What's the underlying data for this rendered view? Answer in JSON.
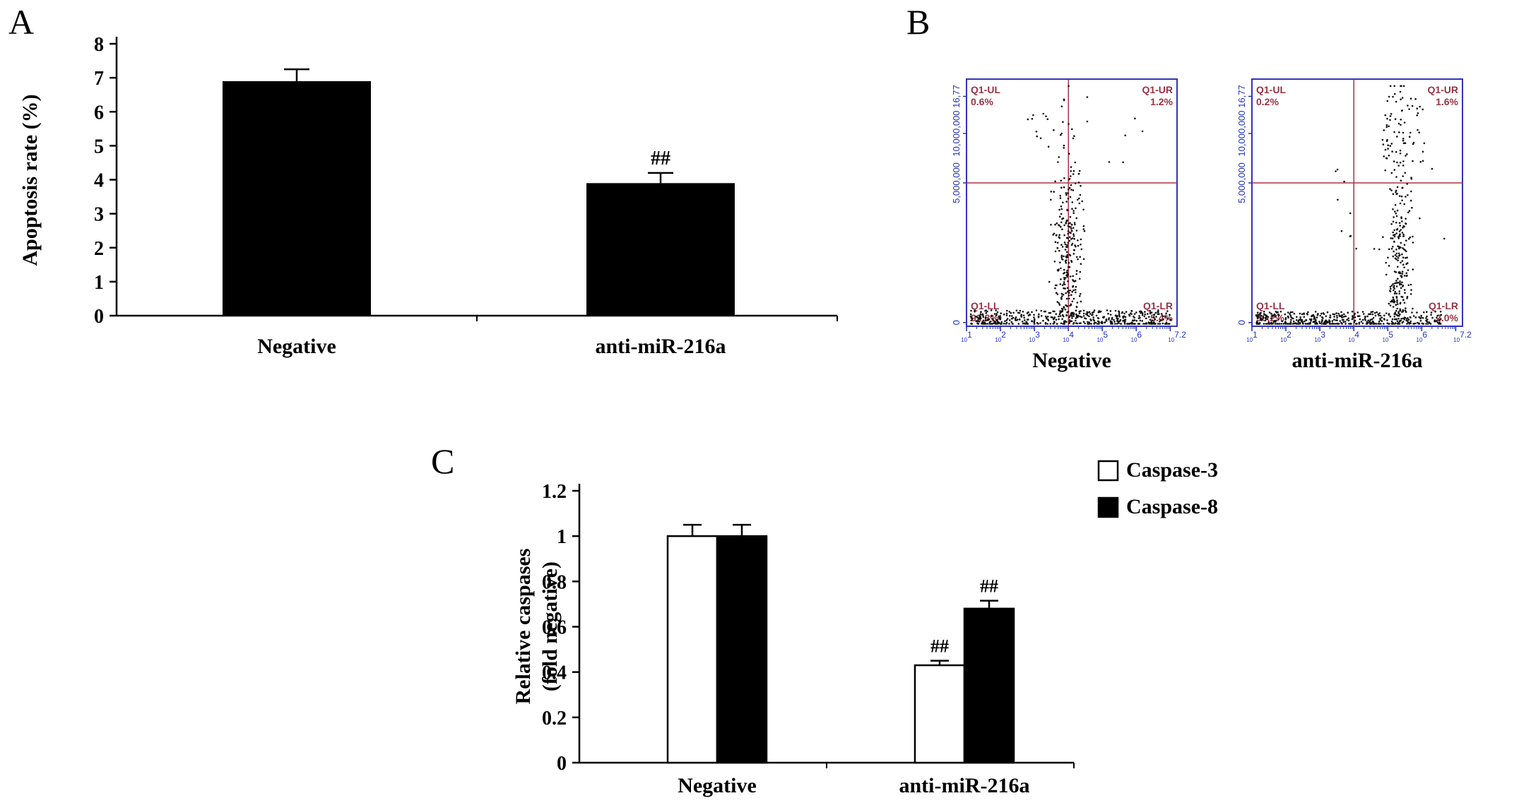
{
  "figure": {
    "background": "#ffffff",
    "panels": {
      "A": {
        "label": "A"
      },
      "B": {
        "label": "B"
      },
      "C": {
        "label": "C"
      }
    }
  },
  "colors": {
    "bar_fill": "#000000",
    "flow_frame": "#3333bb",
    "flow_crosshair": "#aa3344",
    "flow_quadrant_text": "#993344",
    "flow_tick_text": "#2233bb",
    "scatter_dot": "#111111"
  },
  "chart_data": [
    {
      "id": "apoptosis-bar",
      "panel": "A",
      "type": "bar",
      "title": "",
      "ylabel": "Apoptosis rate (%)",
      "ylim": [
        0,
        8
      ],
      "yticks": [
        "0",
        "1",
        "2",
        "3",
        "4",
        "5",
        "6",
        "7",
        "8"
      ],
      "categories": [
        "Negative",
        "anti-miR-216a"
      ],
      "values": [
        6.9,
        3.9
      ],
      "errors": [
        0.35,
        0.3
      ],
      "annotations": [
        {
          "category_index": 1,
          "text": "##"
        }
      ],
      "bar_color": "#000000"
    },
    {
      "id": "flow-negative",
      "panel": "B",
      "type": "scatter",
      "title": "Negative",
      "yticks": [
        "16,77",
        "10,000,000",
        "5,000,000",
        "0"
      ],
      "x_base": "10",
      "x_exponents": [
        "1",
        "2",
        "3",
        "4",
        "5",
        "6"
      ],
      "x_end_label": "7.2",
      "quadrants": [
        {
          "name": "Q1-UL",
          "value": "0.6%"
        },
        {
          "name": "Q1-UR",
          "value": "1.2%"
        },
        {
          "name": "Q1-LL",
          "value": "92.8%"
        },
        {
          "name": "Q1-LR",
          "value": "5.4%"
        }
      ]
    },
    {
      "id": "flow-anti",
      "panel": "B",
      "type": "scatter",
      "title": "anti-miR-216a",
      "yticks": [
        "16,77",
        "10,000,000",
        "5,000,000",
        "0"
      ],
      "x_base": "10",
      "x_exponents": [
        "1",
        "2",
        "3",
        "4",
        "5",
        "6"
      ],
      "x_end_label": "7.2",
      "quadrants": [
        {
          "name": "Q1-UL",
          "value": "0.2%"
        },
        {
          "name": "Q1-UR",
          "value": "1.6%"
        },
        {
          "name": "Q1-LL",
          "value": "96.2%"
        },
        {
          "name": "Q1-LR",
          "value": "2.0%"
        }
      ]
    },
    {
      "id": "caspase-bar",
      "panel": "C",
      "type": "bar",
      "title": "",
      "ylabel_lines": [
        "Relative caspases",
        "(fold negative)"
      ],
      "ylim": [
        0,
        1.2
      ],
      "yticks": [
        "0",
        "0.2",
        "0.4",
        "0.6",
        "0.8",
        "1",
        "1.2"
      ],
      "categories": [
        "Negative",
        "anti-miR-216a"
      ],
      "series": [
        {
          "name": "Caspase-3",
          "fill": "#ffffff",
          "values": [
            1.0,
            0.43
          ],
          "errors": [
            0.05,
            0.02
          ]
        },
        {
          "name": "Caspase-8",
          "fill": "#000000",
          "values": [
            1.0,
            0.68
          ],
          "errors": [
            0.05,
            0.035
          ]
        }
      ],
      "annotations": [
        {
          "category_index": 1,
          "series_index": 0,
          "text": "##"
        },
        {
          "category_index": 1,
          "series_index": 1,
          "text": "##"
        }
      ],
      "legend": [
        {
          "label": "Caspase-3",
          "fill": "#ffffff"
        },
        {
          "label": "Caspase-8",
          "fill": "#000000"
        }
      ]
    }
  ]
}
